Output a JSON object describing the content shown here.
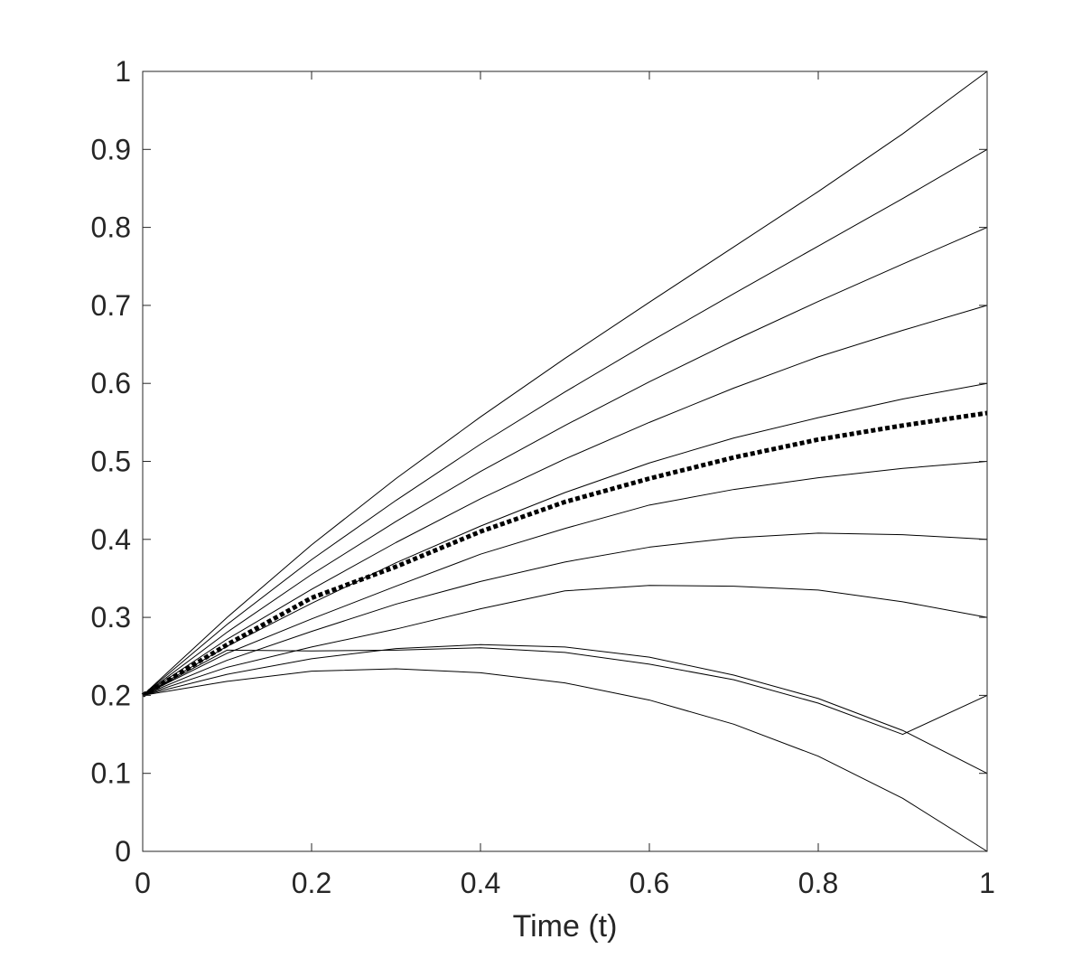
{
  "chart_data": {
    "type": "line",
    "title": "",
    "xlabel": "Time (t)",
    "ylabel": "",
    "xlim": [
      0,
      1
    ],
    "ylim": [
      0,
      1
    ],
    "xticks": [
      0,
      0.2,
      0.4,
      0.6,
      0.8,
      1
    ],
    "xtick_labels": [
      "0",
      "0.2",
      "0.4",
      "0.6",
      "0.8",
      "1"
    ],
    "yticks": [
      0,
      0.1,
      0.2,
      0.3,
      0.4,
      0.5,
      0.6,
      0.7,
      0.8,
      0.9,
      1
    ],
    "ytick_labels": [
      "0",
      "0.1",
      "0.2",
      "0.3",
      "0.4",
      "0.5",
      "0.6",
      "0.7",
      "0.8",
      "0.9",
      "1"
    ],
    "grid": false,
    "box": true,
    "x": [
      0,
      0.1,
      0.2,
      0.3,
      0.4,
      0.5,
      0.6,
      0.7,
      0.8,
      0.9,
      1.0
    ],
    "series": [
      {
        "values": [
          0.2,
          0.3,
          0.393,
          0.478,
          0.557,
          0.632,
          0.704,
          0.775,
          0.846,
          0.92,
          1.0
        ],
        "color": "#000000",
        "style": "solid"
      },
      {
        "values": [
          0.2,
          0.291,
          0.374,
          0.45,
          0.522,
          0.589,
          0.653,
          0.715,
          0.776,
          0.837,
          0.9
        ],
        "color": "#000000",
        "style": "solid"
      },
      {
        "values": [
          0.2,
          0.281,
          0.355,
          0.423,
          0.487,
          0.546,
          0.602,
          0.655,
          0.705,
          0.753,
          0.8
        ],
        "color": "#000000",
        "style": "solid"
      },
      {
        "values": [
          0.2,
          0.272,
          0.336,
          0.396,
          0.452,
          0.503,
          0.55,
          0.594,
          0.634,
          0.668,
          0.7
        ],
        "color": "#000000",
        "style": "solid"
      },
      {
        "values": [
          0.2,
          0.263,
          0.318,
          0.37,
          0.417,
          0.46,
          0.498,
          0.53,
          0.556,
          0.58,
          0.6
        ],
        "color": "#000000",
        "style": "solid"
      },
      {
        "values": [
          0.2,
          0.254,
          0.298,
          0.34,
          0.381,
          0.414,
          0.444,
          0.464,
          0.479,
          0.491,
          0.5
        ],
        "color": "#000000",
        "style": "solid"
      },
      {
        "values": [
          0.2,
          0.245,
          0.282,
          0.317,
          0.346,
          0.371,
          0.39,
          0.402,
          0.408,
          0.406,
          0.4
        ],
        "color": "#000000",
        "style": "solid"
      },
      {
        "values": [
          0.2,
          0.236,
          0.262,
          0.285,
          0.311,
          0.334,
          0.341,
          0.34,
          0.335,
          0.32,
          0.3
        ],
        "color": "#000000",
        "style": "solid"
      },
      {
        "values": [
          0.2,
          0.227,
          0.247,
          0.26,
          0.265,
          0.262,
          0.249,
          0.226,
          0.196,
          0.155,
          0.1
        ],
        "color": "#000000",
        "style": "solid"
      },
      {
        "values": [
          0.2,
          0.218,
          0.231,
          0.234,
          0.229,
          0.216,
          0.194,
          0.163,
          0.122,
          0.068,
          0.0
        ],
        "color": "#000000",
        "style": "solid"
      },
      {
        "values": [
          0.2,
          0.258,
          0.257,
          0.258,
          0.261,
          0.255,
          0.24,
          0.22,
          0.19,
          0.15,
          0.2
        ],
        "color": "#000000",
        "style": "solid"
      },
      {
        "values": [
          0.2,
          0.265,
          0.325,
          0.365,
          0.41,
          0.448,
          0.478,
          0.505,
          0.528,
          0.546,
          0.562
        ],
        "color": "#000000",
        "style": "dotted-thick"
      }
    ]
  }
}
